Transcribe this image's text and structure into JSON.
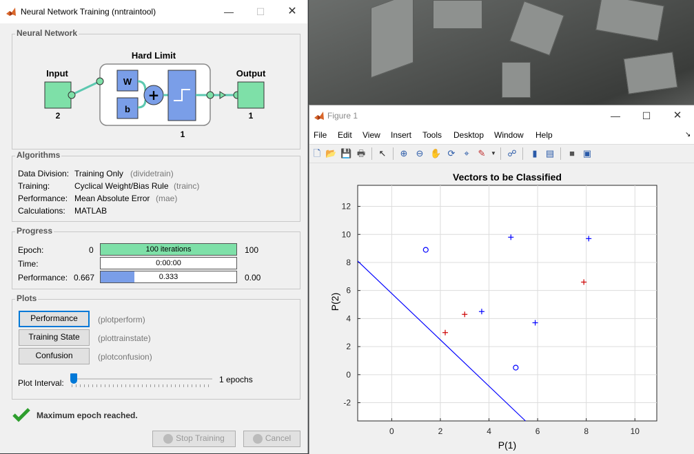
{
  "nntraintool": {
    "title": "Neural Network Training (nntraintool)",
    "network": {
      "section": "Neural Network",
      "layer_title": "Hard Limit",
      "input_label": "Input",
      "input_size": "2",
      "output_label": "Output",
      "output_size": "1",
      "weight": "W",
      "bias": "b",
      "layer_size": "1"
    },
    "algorithms": {
      "section": "Algorithms",
      "rows": [
        {
          "label": "Data Division:",
          "value": "Training Only",
          "fn": "(dividetrain)"
        },
        {
          "label": "Training:",
          "value": "Cyclical Weight/Bias Rule",
          "fn": "(trainc)"
        },
        {
          "label": "Performance:",
          "value": "Mean Absolute Error",
          "fn": "(mae)"
        },
        {
          "label": "Calculations:",
          "value": "MATLAB",
          "fn": ""
        }
      ]
    },
    "progress": {
      "section": "Progress",
      "epoch": {
        "label": "Epoch:",
        "min": "0",
        "bar": "100 iterations",
        "max": "100",
        "fill": 1.0
      },
      "time": {
        "label": "Time:",
        "bar": "0:00:00"
      },
      "performance": {
        "label": "Performance:",
        "min": "0.667",
        "bar": "0.333",
        "max": "0.00",
        "fill": 0.25
      }
    },
    "plots": {
      "section": "Plots",
      "buttons": [
        {
          "label": "Performance",
          "fn": "(plotperform)"
        },
        {
          "label": "Training State",
          "fn": "(plottrainstate)"
        },
        {
          "label": "Confusion",
          "fn": "(plotconfusion)"
        }
      ],
      "interval_label": "Plot Interval:",
      "interval_value": "1 epochs"
    },
    "status": "Maximum epoch reached.",
    "stop_button": "Stop Training",
    "cancel_button": "Cancel",
    "colors": {
      "green_box": "#7ee0a8",
      "blue_box": "#7a9ee8",
      "accent": "#0078d7"
    }
  },
  "figure": {
    "title": "Figure 1",
    "menus": [
      "File",
      "Edit",
      "View",
      "Insert",
      "Tools",
      "Desktop",
      "Window",
      "Help"
    ],
    "toolbar_icons": [
      "new-figure-icon",
      "open-file-icon",
      "save-icon",
      "print-icon",
      "pointer-icon",
      "zoom-in-icon",
      "zoom-out-icon",
      "pan-icon",
      "rotate-icon",
      "data-cursor-icon",
      "brush-icon",
      "link-plot-icon",
      "colorbar-icon",
      "legend-icon",
      "hide-plot-tools-icon",
      "show-plot-tools-icon"
    ]
  },
  "chart_data": {
    "type": "scatter",
    "title": "Vectors to be Classified",
    "xlabel": "P(1)",
    "ylabel": "P(2)",
    "xlim": [
      -1.4,
      10.9
    ],
    "ylim": [
      -3.3,
      13.5
    ],
    "xticks": [
      0,
      2,
      4,
      6,
      8,
      10
    ],
    "yticks": [
      -2,
      0,
      2,
      4,
      6,
      8,
      10,
      12
    ],
    "grid": true,
    "series": [
      {
        "marker": "o",
        "color": "#0000ff",
        "points": [
          [
            1.4,
            8.9
          ],
          [
            5.1,
            0.5
          ]
        ]
      },
      {
        "marker": "+",
        "color": "#cc0000",
        "points": [
          [
            2.2,
            3.0
          ],
          [
            3.0,
            4.3
          ],
          [
            7.9,
            6.6
          ]
        ]
      },
      {
        "marker": "+",
        "color": "#0000ff",
        "points": [
          [
            3.7,
            4.5
          ],
          [
            4.9,
            9.8
          ],
          [
            5.9,
            3.7
          ],
          [
            8.1,
            9.7
          ]
        ]
      }
    ],
    "line": {
      "color": "#0000ff",
      "points": [
        [
          -1.4,
          8.1
        ],
        [
          5.5,
          -3.3
        ]
      ]
    }
  }
}
